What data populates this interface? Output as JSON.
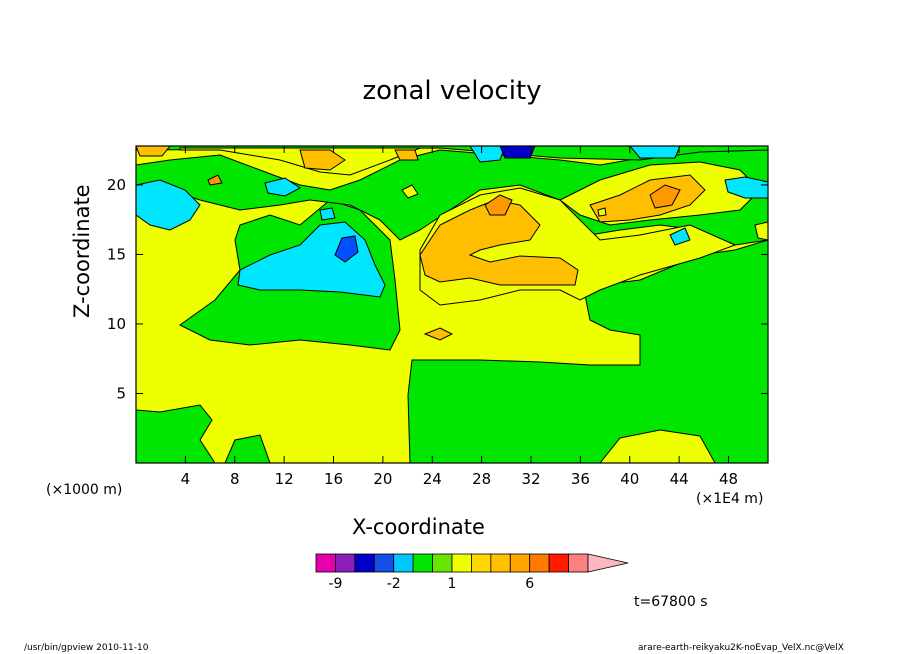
{
  "chart_data": {
    "type": "heatmap",
    "title": "zonal velocity",
    "xlabel": "X-coordinate",
    "ylabel": "Z-coordinate",
    "x_unit_label": "(×1000 m)",
    "x_scale_label": "(×1E4 m)",
    "x_ticks": [
      4,
      8,
      12,
      16,
      20,
      24,
      28,
      32,
      36,
      40,
      44,
      48
    ],
    "y_ticks": [
      5,
      10,
      15,
      20
    ],
    "xlim": [
      0,
      51.2
    ],
    "ylim": [
      0,
      22.8
    ],
    "colorbar": {
      "levels": [
        -10,
        -9,
        -8,
        -7,
        -2,
        -1,
        0,
        1,
        2,
        3,
        4,
        6,
        8,
        10,
        12
      ],
      "tick_labels": [
        "-9",
        "-2",
        "1",
        "6"
      ],
      "tick_values": [
        -9,
        -2,
        1,
        6
      ],
      "colors": [
        "#e600b0",
        "#8a1fb8",
        "#0000c8",
        "#1450e6",
        "#00c8ff",
        "#00e600",
        "#66e600",
        "#eeff00",
        "#ffd700",
        "#ffc000",
        "#ffa500",
        "#ff7a00",
        "#ff1a00",
        "#ff8080",
        "#ffb6c1"
      ]
    },
    "regions": [
      {
        "level": "green",
        "color": "#00e600"
      },
      {
        "level": "yellow",
        "color": "#eeff00"
      },
      {
        "level": "cyan",
        "color": "#00e6ff"
      },
      {
        "level": "orange",
        "color": "#ffbf00"
      },
      {
        "level": "dark-orange",
        "color": "#ff9900"
      },
      {
        "level": "blue",
        "color": "#0050ff"
      },
      {
        "level": "dark-blue",
        "color": "#0000c8"
      }
    ]
  },
  "annotations": {
    "time": "t=67800 s",
    "footer_left": "/usr/bin/gpview   2010-11-10",
    "footer_right": "arare-earth-reikyaku2K-noEvap_VelX.nc@VelX"
  }
}
